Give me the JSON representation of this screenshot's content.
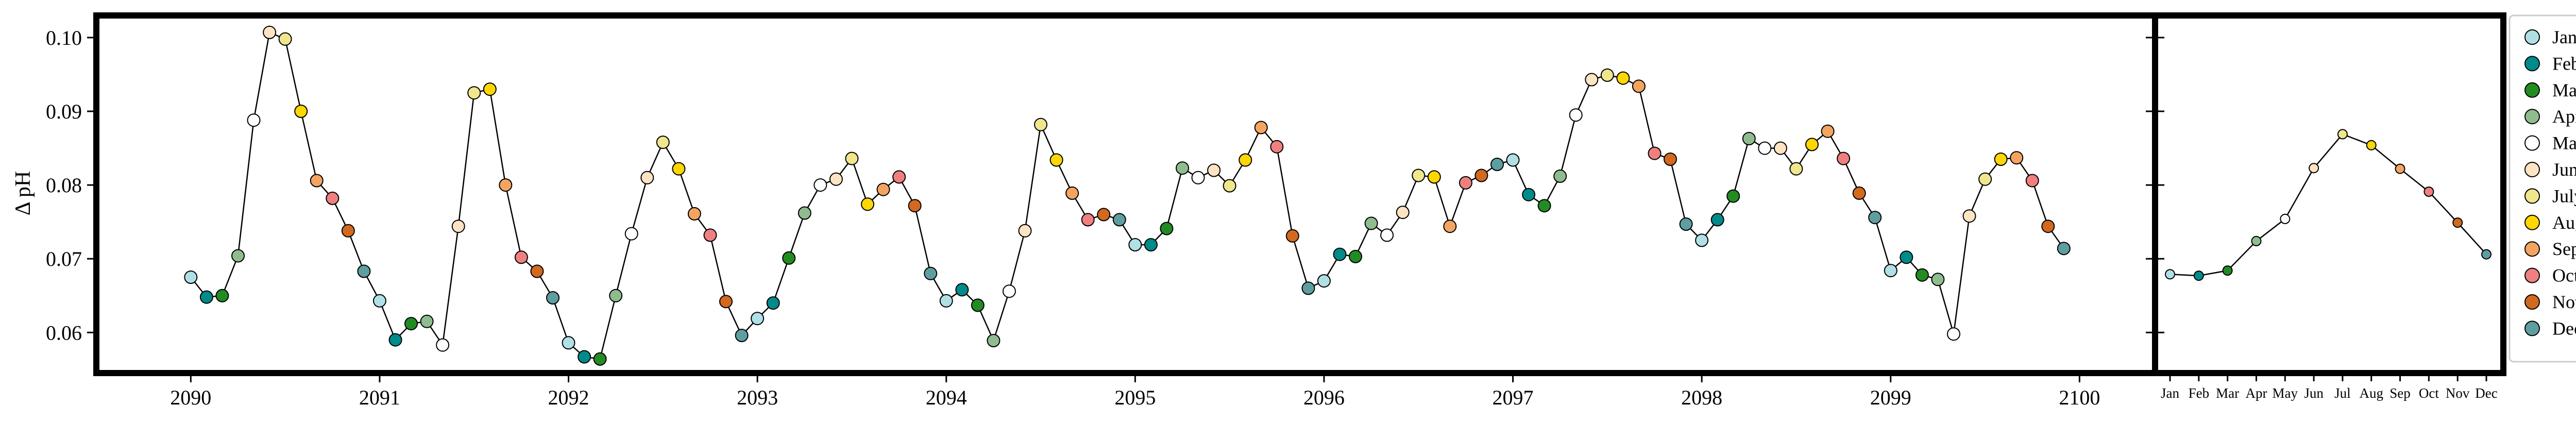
{
  "chart_data": [
    {
      "type": "line",
      "ylabel": "Δ pH",
      "xlabel": "",
      "ylim": [
        0.0545,
        0.103
      ],
      "xlim": [
        2089.5,
        2100.4
      ],
      "x_ticks": [
        2090,
        2091,
        2092,
        2093,
        2094,
        2095,
        2096,
        2097,
        2098,
        2099,
        2100
      ],
      "y_ticks": [
        0.06,
        0.07,
        0.08,
        0.09,
        0.1
      ],
      "y_tick_labels": [
        "0.06",
        "0.07",
        "0.08",
        "0.09",
        "0.10"
      ],
      "grid": false,
      "line_color": "#000000",
      "start_year": 2090,
      "values": [
        0.0675,
        0.0648,
        0.065,
        0.0704,
        0.0888,
        0.1007,
        0.0998,
        0.09,
        0.0806,
        0.0782,
        0.0738,
        0.0683,
        0.0643,
        0.059,
        0.0612,
        0.0615,
        0.0583,
        0.0744,
        0.0925,
        0.093,
        0.08,
        0.0702,
        0.0683,
        0.0647,
        0.0586,
        0.0567,
        0.0564,
        0.065,
        0.0734,
        0.081,
        0.0858,
        0.0822,
        0.0761,
        0.0732,
        0.0642,
        0.0596,
        0.0619,
        0.064,
        0.0701,
        0.0762,
        0.08,
        0.0808,
        0.0836,
        0.0774,
        0.0794,
        0.0811,
        0.0772,
        0.068,
        0.0643,
        0.0658,
        0.0637,
        0.0589,
        0.0656,
        0.0738,
        0.0882,
        0.0834,
        0.0789,
        0.0753,
        0.076,
        0.0753,
        0.0719,
        0.0719,
        0.0741,
        0.0823,
        0.081,
        0.082,
        0.0799,
        0.0834,
        0.0878,
        0.0852,
        0.0731,
        0.066,
        0.067,
        0.0706,
        0.0703,
        0.0748,
        0.0732,
        0.0763,
        0.0813,
        0.0811,
        0.0744,
        0.0803,
        0.0813,
        0.0828,
        0.0834,
        0.0787,
        0.0772,
        0.0812,
        0.0895,
        0.0943,
        0.0949,
        0.0945,
        0.0934,
        0.0843,
        0.0835,
        0.0747,
        0.0725,
        0.0753,
        0.0785,
        0.0863,
        0.085,
        0.085,
        0.0822,
        0.0855,
        0.0873,
        0.0836,
        0.0789,
        0.0756,
        0.0684,
        0.0702,
        0.0678,
        0.0672,
        0.0598,
        0.0758,
        0.0808,
        0.0835,
        0.0837,
        0.0806,
        0.0744,
        0.0714
      ]
    },
    {
      "type": "line",
      "categories": [
        "Jan",
        "Feb",
        "Mar",
        "Apr",
        "May",
        "June",
        "July",
        "Aug",
        "Sept",
        "Oct",
        "Nov",
        "Dec"
      ],
      "tick_labels": [
        "Jan",
        "Feb",
        "Mar",
        "Apr",
        "May",
        "Jun",
        "Jul",
        "Aug",
        "Sep",
        "Oct",
        "Nov",
        "Dec"
      ],
      "values": [
        0.0679,
        0.0677,
        0.0684,
        0.0724,
        0.0754,
        0.0823,
        0.0869,
        0.0854,
        0.0822,
        0.0791,
        0.0749,
        0.0706
      ],
      "ylim": [
        0.0545,
        0.103
      ],
      "grid": false
    }
  ],
  "legend": {
    "placement": "right",
    "entries": [
      {
        "label": "Jan",
        "color": "#b0e0e6"
      },
      {
        "label": "Feb",
        "color": "#008b8b"
      },
      {
        "label": "Mar",
        "color": "#228b22"
      },
      {
        "label": "Apr",
        "color": "#8fbc8f"
      },
      {
        "label": "May",
        "color": "#ffffff"
      },
      {
        "label": "June",
        "color": "#ffe4c4"
      },
      {
        "label": "July",
        "color": "#f0e68c"
      },
      {
        "label": "Aug",
        "color": "#ffd700"
      },
      {
        "label": "Sept",
        "color": "#f4a460"
      },
      {
        "label": "Oct",
        "color": "#f08080"
      },
      {
        "label": "Nov",
        "color": "#d2691e"
      },
      {
        "label": "Dec",
        "color": "#5f9ea0"
      }
    ]
  }
}
